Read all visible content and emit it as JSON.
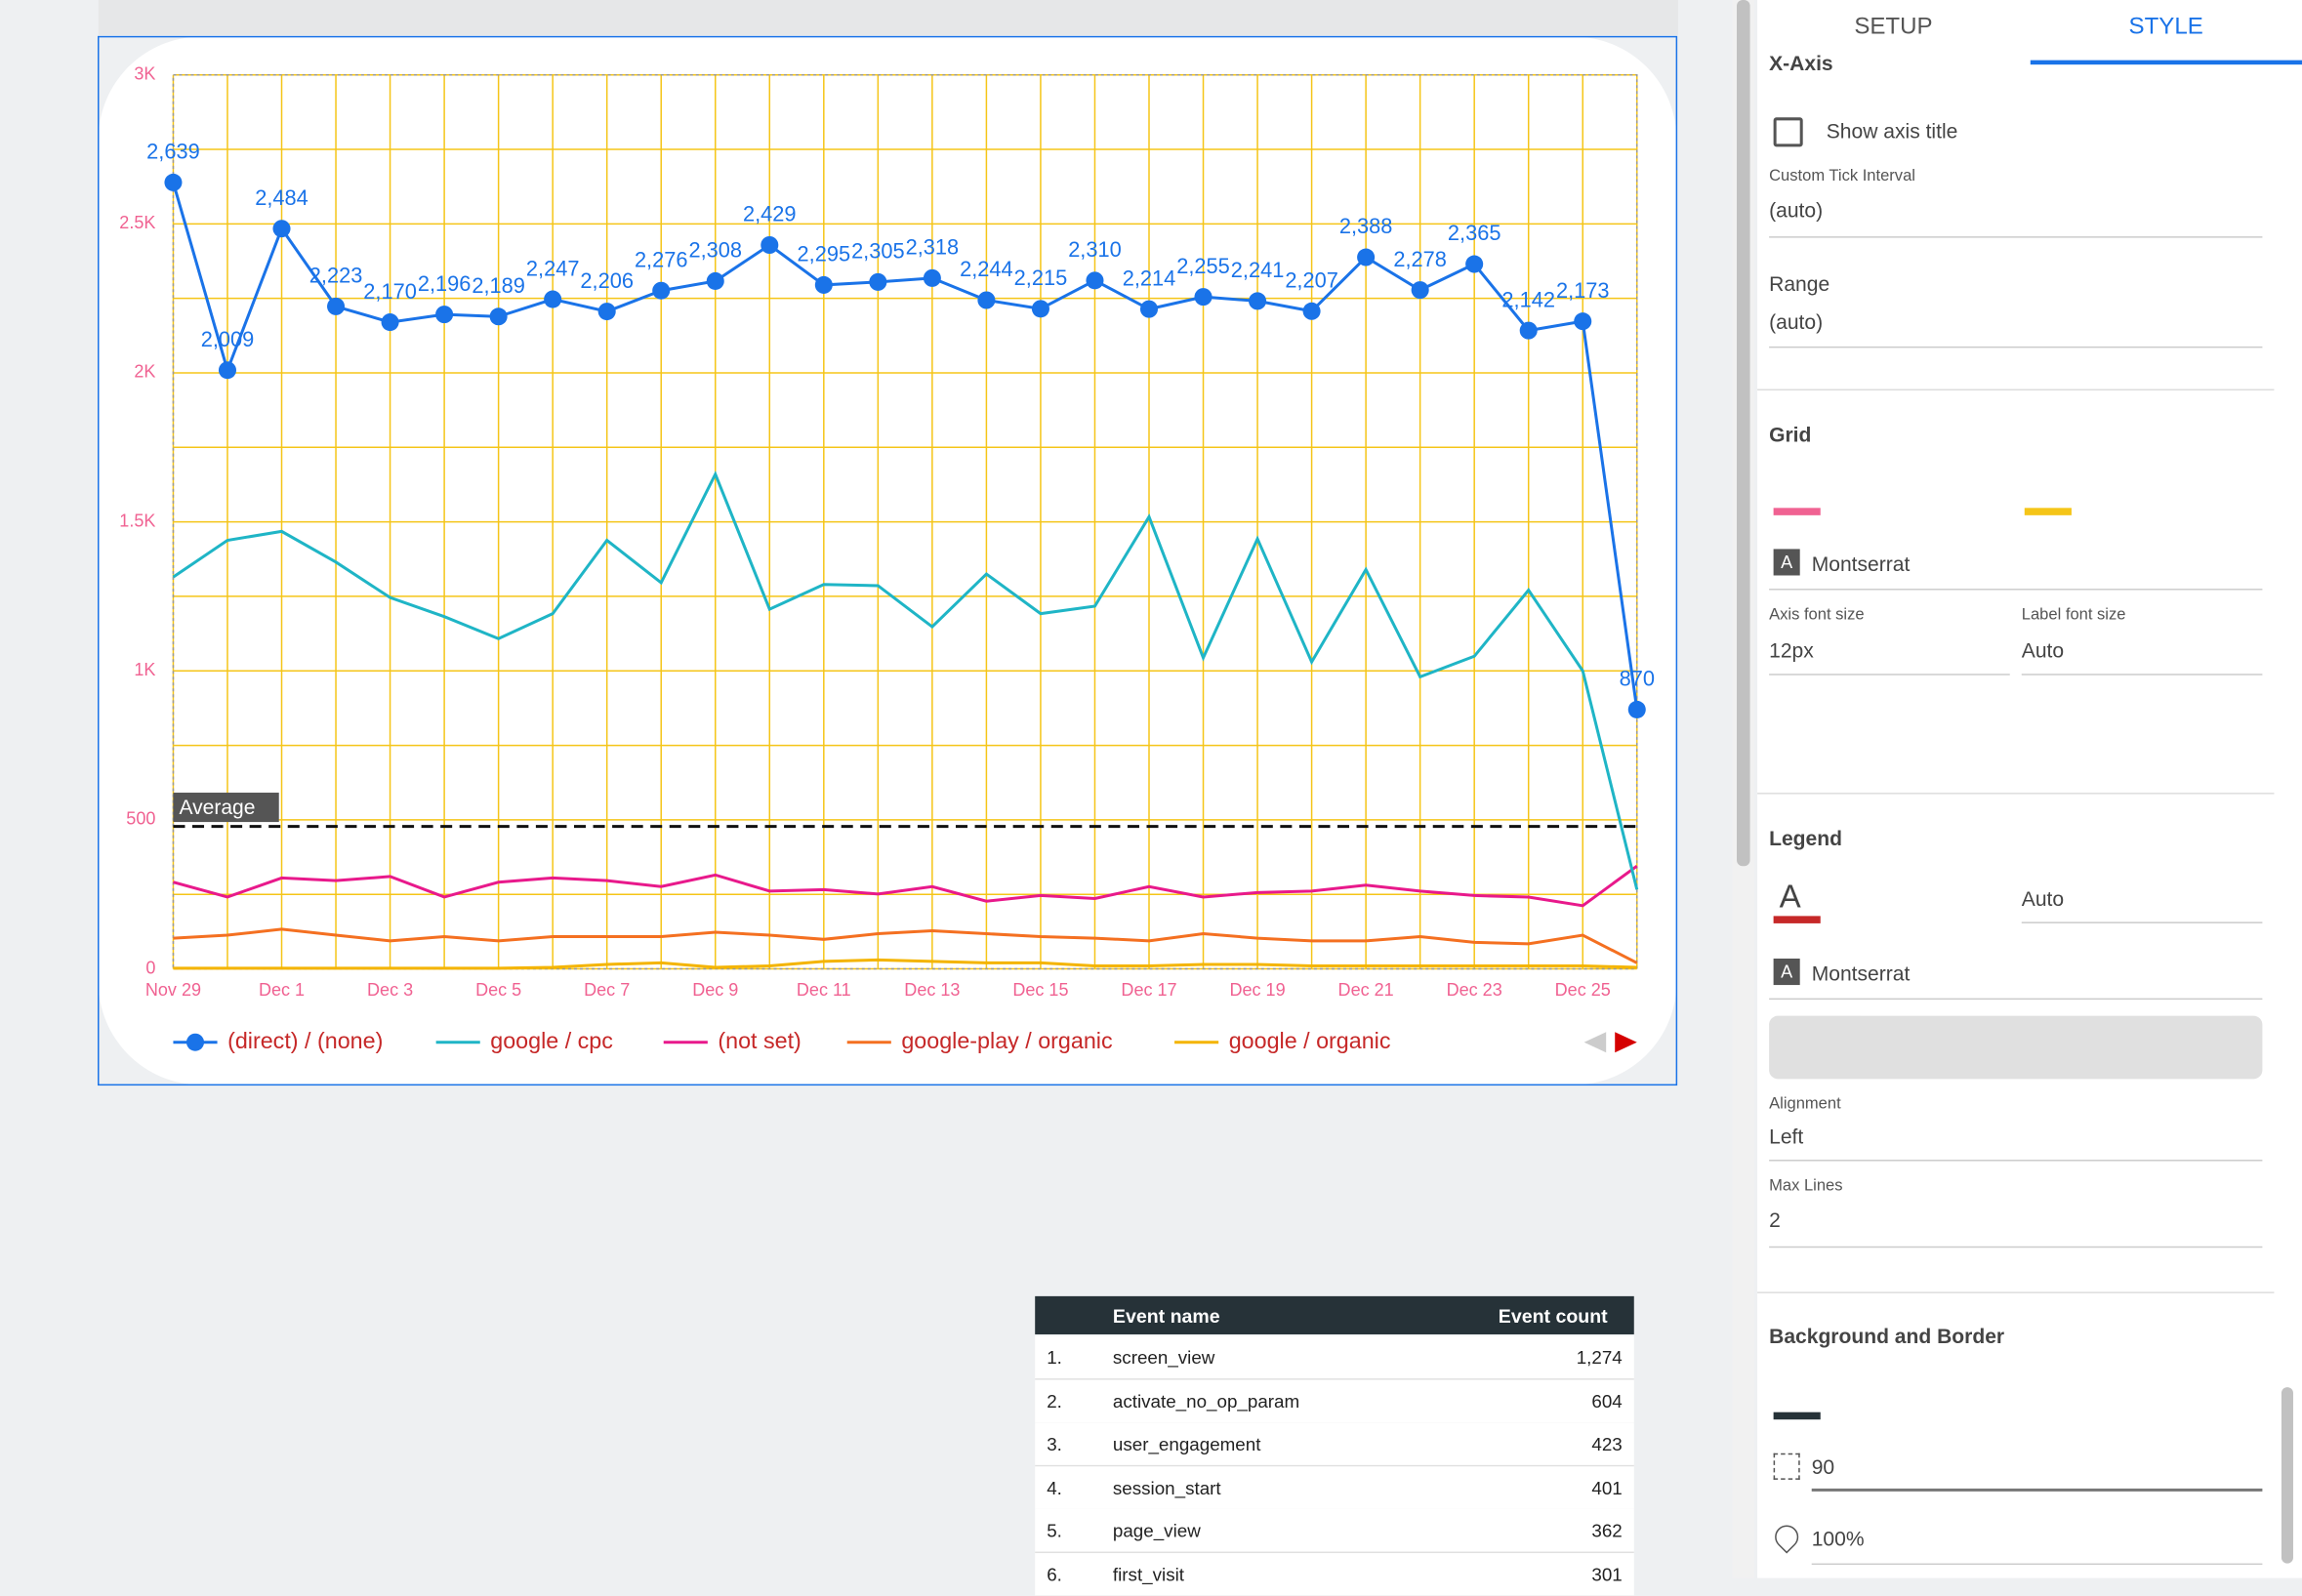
{
  "chart_data": {
    "type": "line",
    "categories": [
      "Nov 29",
      null,
      "Dec 1",
      null,
      "Dec 3",
      null,
      "Dec 5",
      null,
      "Dec 7",
      null,
      "Dec 9",
      null,
      "Dec 11",
      null,
      "Dec 13",
      null,
      "Dec 15",
      null,
      "Dec 17",
      null,
      "Dec 19",
      null,
      "Dec 21",
      null,
      "Dec 23",
      null,
      "Dec 25",
      null
    ],
    "series": [
      {
        "name": "(direct) / (none)",
        "color": "#1a73e8",
        "markers": true,
        "values": [
          2639,
          2009,
          2484,
          2223,
          2170,
          2196,
          2189,
          2247,
          2206,
          2276,
          2308,
          2429,
          2295,
          2305,
          2318,
          2244,
          2215,
          2310,
          2214,
          2255,
          2241,
          2207,
          2388,
          2278,
          2365,
          2142,
          2173,
          870
        ],
        "value_labels": [
          "2,639",
          "2,009",
          "2,484",
          "2,223",
          "2,170",
          "2,196",
          "2,189",
          "2,247",
          "2,206",
          "2,276",
          "2,308",
          "2,429",
          "2,295",
          "2,305",
          "2,318",
          "2,244",
          "2,215",
          "2,310",
          "2,214",
          "2,255",
          "2,241",
          "2,207",
          "2,388",
          "2,278",
          "2,365",
          "2,142",
          "2,173",
          "870"
        ]
      },
      {
        "name": "google / cpc",
        "color": "#1fb5c6",
        "values": [
          1315,
          1438,
          1468,
          1365,
          1246,
          1182,
          1108,
          1192,
          1438,
          1296,
          1660,
          1207,
          1290,
          1286,
          1148,
          1325,
          1192,
          1217,
          1517,
          1044,
          1443,
          1030,
          1340,
          980,
          1049,
          1271,
          1000,
          266
        ]
      },
      {
        "name": "(not set)",
        "color": "#e8198b",
        "values": [
          291,
          241,
          305,
          296,
          310,
          241,
          291,
          305,
          296,
          276,
          315,
          261,
          266,
          251,
          276,
          227,
          246,
          236,
          276,
          241,
          256,
          261,
          281,
          261,
          246,
          241,
          212,
          345
        ]
      },
      {
        "name": "google-play / organic",
        "color": "#f47021",
        "values": [
          103,
          113,
          133,
          113,
          94,
          108,
          94,
          108,
          108,
          108,
          123,
          113,
          99,
          118,
          128,
          118,
          108,
          103,
          94,
          118,
          103,
          94,
          94,
          108,
          89,
          84,
          113,
          20
        ]
      },
      {
        "name": "google / organic",
        "color": "#f4b400",
        "values": [
          2,
          2,
          2,
          2,
          2,
          2,
          2,
          5,
          15,
          20,
          5,
          10,
          25,
          30,
          25,
          20,
          20,
          10,
          10,
          15,
          15,
          10,
          10,
          10,
          10,
          10,
          10,
          5
        ]
      }
    ],
    "reference_line": {
      "label": "Average",
      "value": 478
    },
    "ylim": [
      0,
      3000
    ],
    "yticks": [
      0,
      500,
      {
        "value": 1000,
        "label": "1K"
      },
      {
        "value": 1500,
        "label": "1.5K"
      },
      {
        "value": 2000,
        "label": "2K"
      },
      {
        "value": 2500,
        "label": "2.5K"
      },
      {
        "value": 3000,
        "label": "3K"
      }
    ],
    "grid": true,
    "grid_color": "#f5c518",
    "axis_color": "#f06292",
    "legend_color": "#c62828",
    "legend": "bottom"
  },
  "panel": {
    "tabs": [
      "SETUP",
      "STYLE"
    ],
    "section_cut": "X-Axis",
    "show_axis_title": "Show axis title",
    "tick_interval_label": "Custom Tick Interval",
    "tick_interval": "(auto)",
    "range_label": "Range",
    "range": "(auto)",
    "grid_title": "Grid",
    "grid_font": "Montserrat",
    "axis_font_size_label": "Axis font size",
    "axis_font_size": "12px",
    "label_font_size_label": "Label font size",
    "label_font_size": "Auto",
    "legend_title": "Legend",
    "legend_size": "Auto",
    "legend_font": "Montserrat",
    "alignment_label": "Alignment",
    "alignment": "Left",
    "max_lines_label": "Max Lines",
    "max_lines": "2",
    "bg_title": "Background and Border",
    "radius": "90",
    "opacity": "100%"
  },
  "table": {
    "header": [
      "Event name",
      "Event count"
    ],
    "rows": [
      [
        "1.",
        "screen_view",
        "1,274"
      ],
      [
        "2.",
        "activate_no_op_param",
        "604"
      ],
      [
        "3.",
        "user_engagement",
        "423"
      ],
      [
        "4.",
        "session_start",
        "401"
      ],
      [
        "5.",
        "page_view",
        "362"
      ],
      [
        "6.",
        "first_visit",
        "301"
      ]
    ]
  }
}
